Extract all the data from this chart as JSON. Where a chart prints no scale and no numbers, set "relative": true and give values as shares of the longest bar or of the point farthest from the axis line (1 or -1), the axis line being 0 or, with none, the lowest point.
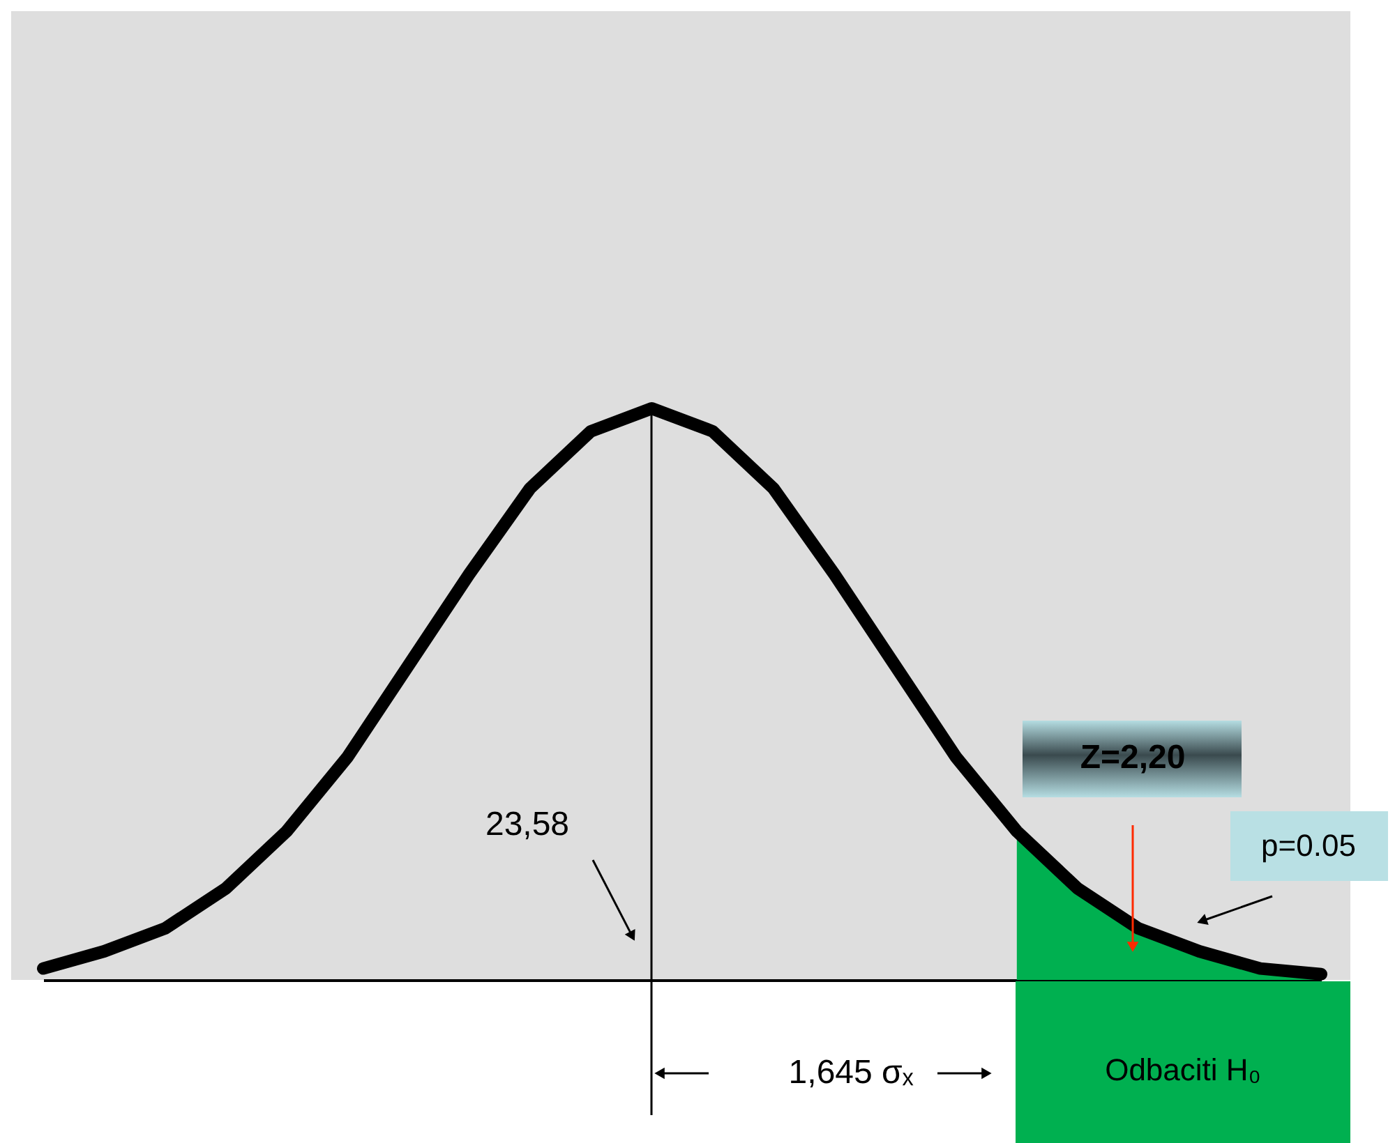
{
  "chart_data": {
    "type": "line",
    "relative": true,
    "categories": [
      null,
      null,
      null,
      null,
      null,
      null,
      null,
      null,
      null,
      null,
      null,
      null,
      null,
      null,
      null,
      null,
      null,
      null,
      null,
      null,
      null,
      null
    ],
    "series": [
      {
        "type": "area",
        "color": "#00b050",
        "values": [
          null,
          null,
          null,
          null,
          null,
          null,
          null,
          null,
          null,
          null,
          null,
          null,
          null,
          null,
          null,
          null,
          0.26,
          0.16,
          0.09,
          0.05,
          0.02,
          0.01
        ]
      },
      {
        "type": "line",
        "color": "#000000",
        "values": [
          0.02,
          0.05,
          0.09,
          0.16,
          0.26,
          0.39,
          0.55,
          0.71,
          0.86,
          0.96,
          1,
          0.96,
          0.86,
          0.71,
          0.55,
          0.39,
          0.26,
          0.16,
          0.09,
          0.05,
          0.02,
          0.01
        ]
      }
    ],
    "annotations": [
      "23,58",
      "Z=2,20",
      "p=0.05",
      "1,645 σₓ",
      "Odbaciti H₀"
    ]
  }
}
